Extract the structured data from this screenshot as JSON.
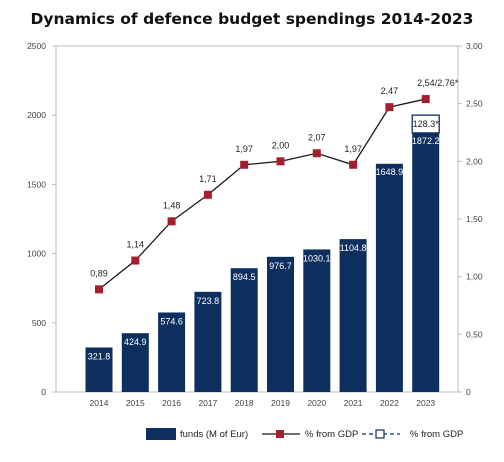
{
  "title": "Dynamics of defence budget spendings 2014-2023",
  "colors": {
    "bar": "#0d2f5e",
    "line": "#1a1a1a",
    "marker": "#a31f2d",
    "frame": "#b8bec8"
  },
  "chart_data": {
    "type": "bar",
    "title": "Dynamics of defence budget spendings 2014-2023",
    "categories": [
      "2014",
      "2015",
      "2016",
      "2017",
      "2018",
      "2019",
      "2020",
      "2021",
      "2022",
      "2023"
    ],
    "left_axis": {
      "ylim": [
        0,
        2500
      ],
      "ticks": [
        "0",
        "500",
        "1000",
        "1500",
        "2000",
        "2500"
      ]
    },
    "right_axis": {
      "ylim": [
        0,
        3.0
      ],
      "ticks": [
        "0",
        "0,50",
        "1,00",
        "1,50",
        "2,00",
        "2,50",
        "3,00"
      ]
    },
    "grid": false,
    "legend_position": "bottom",
    "series": [
      {
        "name": "funds (M of Eur)",
        "type": "bar",
        "axis": "left",
        "values": [
          321.8,
          424.9,
          574.6,
          723.8,
          894.5,
          976.7,
          1030.1,
          1104.8,
          1648.9,
          1872.2
        ],
        "labels": [
          "321.8",
          "424.9",
          "574.6",
          "723.8",
          "894.5",
          "976.7",
          "1030.1",
          "1104.8",
          "1648.9",
          "1872.2"
        ]
      },
      {
        "name": "% from GDP",
        "type": "bar-extension",
        "axis": "left",
        "category": "2023",
        "base": 1872.2,
        "value": 128.3,
        "label": "128.3*"
      },
      {
        "name": "% from GDP",
        "type": "line",
        "axis": "right",
        "values": [
          0.89,
          1.14,
          1.48,
          1.71,
          1.97,
          2.0,
          2.07,
          1.97,
          2.47,
          2.54
        ],
        "labels": [
          "0,89",
          "1,14",
          "1,48",
          "1,71",
          "1,97",
          "2,00",
          "2,07",
          "1,97",
          "2,47",
          "2,54/2.76*"
        ]
      }
    ],
    "legend": [
      {
        "kind": "bar",
        "label": "funds (M of Eur)"
      },
      {
        "kind": "line-marker",
        "label": "% from GDP"
      },
      {
        "kind": "dashed-hollow",
        "label": "% from GDP"
      }
    ]
  }
}
